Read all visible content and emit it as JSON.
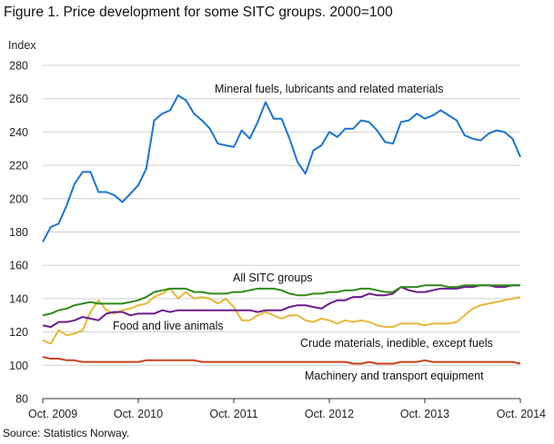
{
  "title": "Figure 1. Price development for some SITC groups. 2000=100",
  "source": "Source: Statistics Norway.",
  "chart_data": {
    "type": "line",
    "ylabel": "Index",
    "ylim": [
      80,
      280
    ],
    "yticks": [
      80,
      100,
      120,
      140,
      160,
      180,
      200,
      220,
      240,
      260,
      280
    ],
    "xticks": [
      "Oct. 2009",
      "Oct. 2010",
      "Oct. 2011",
      "Oct. 2012",
      "Oct. 2013",
      "Oct. 2014"
    ],
    "x_start": "Oct. 2009",
    "x_end": "Oct. 2014",
    "grid": "horizontal",
    "series": [
      {
        "name": "Mineral fuels, lubricants and related materials",
        "color": "#1a75cf",
        "values": [
          174,
          183,
          185,
          196,
          209,
          216,
          216,
          204,
          204,
          202,
          198,
          203,
          208,
          218,
          247,
          251,
          253,
          262,
          259,
          251,
          247,
          242,
          233,
          232,
          231,
          241,
          236,
          246,
          258,
          248,
          248,
          236,
          222,
          215,
          229,
          232,
          240,
          237,
          242,
          242,
          247,
          246,
          241,
          234,
          233,
          246,
          247,
          251,
          248,
          250,
          253,
          250,
          247,
          238,
          236,
          235,
          239,
          241,
          240,
          236,
          225
        ]
      },
      {
        "name": "All SITC groups",
        "color": "#2f8a1b",
        "values": [
          130,
          131,
          133,
          134,
          136,
          137,
          138,
          137,
          137,
          137,
          137,
          138,
          139,
          141,
          144,
          145,
          146,
          146,
          146,
          144,
          144,
          143,
          143,
          143,
          144,
          144,
          145,
          146,
          146,
          146,
          145,
          143,
          142,
          142,
          143,
          143,
          144,
          144,
          145,
          145,
          146,
          146,
          145,
          144,
          144,
          147,
          147,
          147,
          148,
          148,
          148,
          147,
          147,
          148,
          148,
          148,
          148,
          148,
          148,
          148,
          148
        ]
      },
      {
        "name": "Food and live animals",
        "color": "#6a1b8c",
        "values": [
          124,
          123,
          126,
          126,
          127,
          129,
          128,
          127,
          131,
          132,
          132,
          130,
          131,
          131,
          131,
          133,
          132,
          133,
          133,
          133,
          133,
          133,
          133,
          133,
          133,
          133,
          133,
          132,
          133,
          133,
          133,
          135,
          136,
          136,
          135,
          134,
          137,
          139,
          139,
          141,
          141,
          143,
          142,
          142,
          143,
          147,
          145,
          144,
          144,
          145,
          146,
          146,
          146,
          147,
          147,
          148,
          148,
          147,
          147,
          148,
          148
        ]
      },
      {
        "name": "Crude materials, inedible, except fuels",
        "color": "#e8b737",
        "values": [
          115,
          113,
          121,
          118,
          119,
          121,
          132,
          139,
          133,
          131,
          133,
          134,
          136,
          137,
          141,
          143,
          146,
          140,
          144,
          140,
          141,
          140,
          137,
          140,
          135,
          127,
          127,
          130,
          132,
          130,
          128,
          130,
          130,
          127,
          126,
          128,
          127,
          125,
          127,
          126,
          127,
          126,
          124,
          123,
          123,
          125,
          125,
          125,
          124,
          125,
          125,
          125,
          126,
          130,
          134,
          136,
          137,
          138,
          139,
          140,
          141
        ]
      },
      {
        "name": "Machinery and transport equipment",
        "color": "#c8411e",
        "values": [
          105,
          104,
          104,
          103,
          103,
          102,
          102,
          102,
          102,
          102,
          102,
          102,
          102,
          103,
          103,
          103,
          103,
          103,
          103,
          103,
          102,
          102,
          102,
          102,
          102,
          102,
          102,
          102,
          102,
          102,
          102,
          102,
          102,
          102,
          102,
          102,
          102,
          102,
          102,
          101,
          101,
          102,
          101,
          101,
          101,
          102,
          102,
          102,
          103,
          102,
          102,
          102,
          102,
          102,
          102,
          102,
          102,
          102,
          102,
          102,
          101
        ]
      }
    ]
  }
}
